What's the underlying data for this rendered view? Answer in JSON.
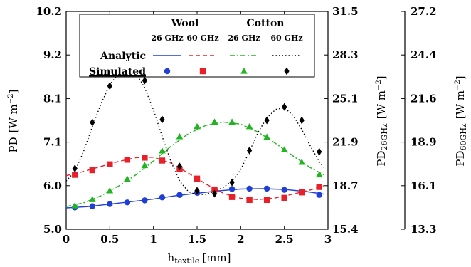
{
  "chart_data": {
    "type": "line",
    "xlabel": {
      "main": "h",
      "sub": "textile",
      "unit": "[mm]"
    },
    "x_ticks": [
      "0",
      "0.5",
      "1",
      "1.5",
      "2",
      "2.5",
      "3"
    ],
    "xlim": [
      0,
      3
    ],
    "axes": [
      {
        "label": {
          "main": "PD",
          "sub": "",
          "unit": "[W m",
          "exp": "−2",
          "close": "]"
        },
        "lim": [
          5.0,
          10.2
        ],
        "ticks": [
          "5.0",
          "6.0",
          "7.1",
          "8.1",
          "9.2",
          "10.2"
        ]
      },
      {
        "label": {
          "main": "PD",
          "sub": "26GHz",
          "unit": "[W m",
          "exp": "−2",
          "close": "]"
        },
        "lim": [
          15.4,
          31.5
        ],
        "ticks": [
          "15.4",
          "18.7",
          "21.9",
          "25.1",
          "28.3",
          "31.5"
        ]
      },
      {
        "label": {
          "main": "PD",
          "sub": "60GHz",
          "unit": "[W m",
          "exp": "−2",
          "close": "]"
        },
        "lim": [
          13.3,
          27.2
        ],
        "ticks": [
          "13.3",
          "16.1",
          "18.9",
          "21.6",
          "24.4",
          "27.2"
        ]
      }
    ],
    "legend": {
      "groups": [
        "Wool",
        "Cotton"
      ],
      "frequencies": [
        "26 GHz",
        "60 GHz",
        "26 GHz",
        "60 GHz"
      ],
      "rows": [
        "Analytic",
        "Simulated"
      ]
    },
    "series": [
      {
        "group": "Wool",
        "frequency": "26 GHz",
        "color": "#1f3fd6",
        "dash": "solid",
        "marker": "circle",
        "analytic": {
          "x": [
            0.0,
            0.25,
            0.5,
            0.75,
            1.0,
            1.25,
            1.5,
            1.75,
            2.0,
            2.25,
            2.5,
            2.75,
            2.95
          ],
          "y": [
            5.51,
            5.54,
            5.6,
            5.66,
            5.72,
            5.8,
            5.86,
            5.92,
            5.96,
            5.97,
            5.95,
            5.9,
            5.84
          ]
        },
        "simulated": {
          "x": [
            0.1,
            0.3,
            0.5,
            0.7,
            0.9,
            1.1,
            1.3,
            1.5,
            1.7,
            1.9,
            2.1,
            2.3,
            2.5,
            2.7,
            2.9
          ],
          "y": [
            5.52,
            5.55,
            5.6,
            5.64,
            5.69,
            5.76,
            5.82,
            5.87,
            5.93,
            5.96,
            5.97,
            5.97,
            5.94,
            5.88,
            5.82
          ]
        }
      },
      {
        "group": "Wool",
        "frequency": "60 GHz",
        "color": "#e8202a",
        "dash": "6,4",
        "marker": "square",
        "analytic": {
          "x": [
            0.0,
            0.2,
            0.4,
            0.6,
            0.8,
            1.0,
            1.2,
            1.4,
            1.6,
            1.8,
            2.0,
            2.2,
            2.4,
            2.6,
            2.8,
            2.95
          ],
          "y": [
            6.28,
            6.38,
            6.5,
            6.62,
            6.71,
            6.72,
            6.58,
            6.34,
            6.08,
            5.86,
            5.74,
            5.71,
            5.75,
            5.84,
            5.94,
            6.04
          ]
        },
        "simulated": {
          "x": [
            0.1,
            0.3,
            0.5,
            0.7,
            0.9,
            1.1,
            1.3,
            1.5,
            1.7,
            1.9,
            2.1,
            2.3,
            2.5,
            2.7,
            2.9
          ],
          "y": [
            6.3,
            6.41,
            6.55,
            6.66,
            6.71,
            6.64,
            6.43,
            6.21,
            5.95,
            5.77,
            5.7,
            5.7,
            5.75,
            5.88,
            6.01
          ]
        }
      },
      {
        "group": "Cotton",
        "frequency": "26 GHz",
        "color": "#22b422",
        "dash": "7,3,2,3",
        "marker": "triangle",
        "analytic": {
          "x": [
            0.0,
            0.2,
            0.4,
            0.6,
            0.8,
            1.0,
            1.2,
            1.4,
            1.6,
            1.8,
            2.0,
            2.2,
            2.4,
            2.6,
            2.8,
            2.95
          ],
          "y": [
            5.54,
            5.63,
            5.8,
            6.03,
            6.3,
            6.63,
            6.98,
            7.28,
            7.48,
            7.56,
            7.51,
            7.32,
            7.05,
            6.75,
            6.47,
            6.3
          ]
        },
        "simulated": {
          "x": [
            0.1,
            0.3,
            0.5,
            0.7,
            0.9,
            1.1,
            1.3,
            1.5,
            1.7,
            1.9,
            2.1,
            2.3,
            2.5,
            2.7,
            2.9
          ],
          "y": [
            5.56,
            5.71,
            5.92,
            6.2,
            6.52,
            6.87,
            7.21,
            7.45,
            7.56,
            7.56,
            7.45,
            7.2,
            6.9,
            6.6,
            6.3
          ]
        }
      },
      {
        "group": "Cotton",
        "frequency": "60 GHz",
        "color": "#000000",
        "dash": "1.5,3",
        "marker": "diamond",
        "analytic": {
          "x": [
            0.0,
            0.1,
            0.2,
            0.3,
            0.4,
            0.5,
            0.6,
            0.7,
            0.8,
            0.9,
            1.0,
            1.1,
            1.2,
            1.3,
            1.4,
            1.5,
            1.6,
            1.7,
            1.8,
            1.9,
            2.0,
            2.1,
            2.2,
            2.3,
            2.4,
            2.5,
            2.6,
            2.7,
            2.8,
            2.9,
            2.95
          ],
          "y": [
            6.15,
            6.38,
            6.86,
            7.45,
            8.0,
            8.45,
            8.72,
            8.84,
            8.72,
            8.38,
            7.85,
            7.22,
            6.62,
            6.15,
            5.9,
            5.82,
            5.84,
            5.9,
            6.0,
            6.15,
            6.42,
            6.86,
            7.32,
            7.66,
            7.86,
            7.9,
            7.72,
            7.38,
            6.98,
            6.62,
            6.48
          ]
        },
        "simulated": {
          "x": [
            0.1,
            0.3,
            0.5,
            0.7,
            0.9,
            1.1,
            1.3,
            1.5,
            1.7,
            1.9,
            2.1,
            2.3,
            2.5,
            2.7,
            2.9
          ],
          "y": [
            6.45,
            7.55,
            8.42,
            8.81,
            8.55,
            7.62,
            6.5,
            5.92,
            5.85,
            6.12,
            6.88,
            7.6,
            7.92,
            7.6,
            6.85
          ]
        }
      }
    ]
  }
}
